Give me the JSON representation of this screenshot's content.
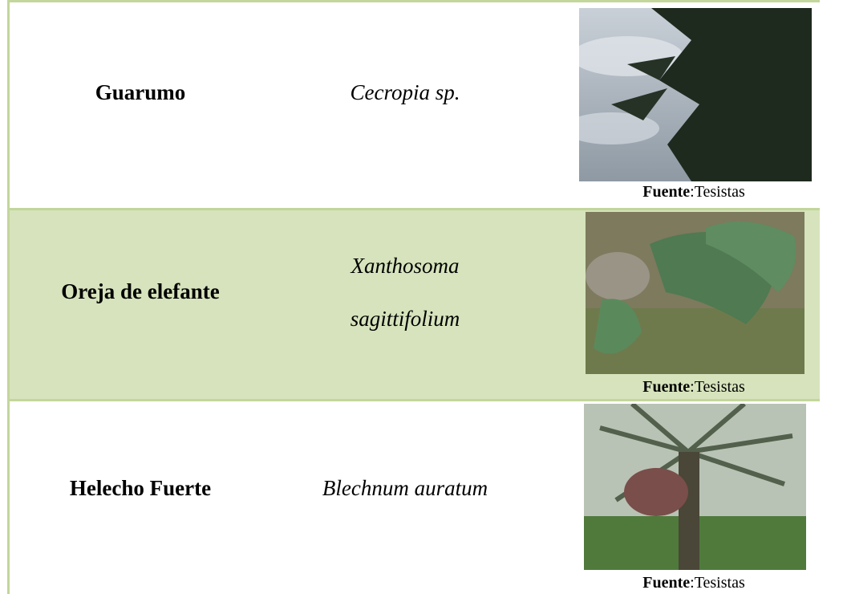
{
  "table": {
    "rows": [
      {
        "common": "Guarumo",
        "scientific": [
          "Cecropia sp."
        ],
        "caption": {
          "label": "Fuente",
          "text": ":Tesistas"
        }
      },
      {
        "common": "Oreja de elefante",
        "scientific": [
          "Xanthosoma",
          "sagittifolium"
        ],
        "caption": {
          "label": "Fuente",
          "text": ":Tesistas"
        }
      },
      {
        "common": "Helecho Fuerte",
        "scientific": [
          "Blechnum auratum"
        ],
        "caption": {
          "label": "Fuente",
          "text": ":Tesistas"
        }
      }
    ]
  }
}
